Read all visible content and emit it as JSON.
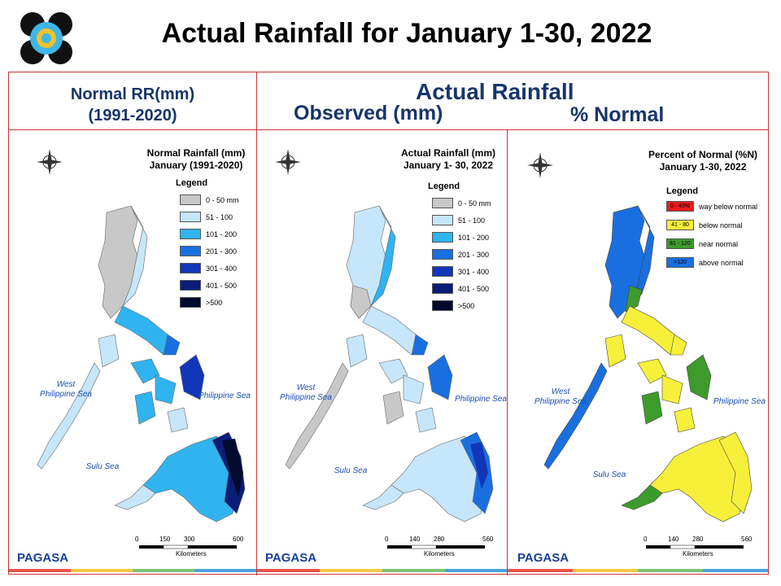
{
  "header": {
    "title": "Actual Rainfall for January 1-30, 2022"
  },
  "column_headers": {
    "normal_line1": "Normal RR(mm)",
    "normal_line2": "(1991-2020)",
    "actual": "Actual Rainfall",
    "observed": "Observed (mm)",
    "percent": "% Normal"
  },
  "maps": [
    {
      "title_line1": "Normal Rainfall (mm)",
      "title_line2": "January (1991-2020)",
      "legend_title": "Legend",
      "legend": [
        {
          "label": "0 - 50 mm",
          "color": "#c8c8c8"
        },
        {
          "label": "51 - 100",
          "color": "#c6e6fb"
        },
        {
          "label": "101 - 200",
          "color": "#2fb4f0"
        },
        {
          "label": "201 - 300",
          "color": "#1a6fe0"
        },
        {
          "label": "301 - 400",
          "color": "#1236b8"
        },
        {
          "label": "401 - 500",
          "color": "#0a1e78"
        },
        {
          "label": ">500",
          "color": "#020b2e"
        }
      ],
      "sea_west": "West\nPhilippine Sea",
      "sea_east": "Philippine Sea",
      "sea_sulu": "Sulu Sea",
      "scale": [
        "0",
        "150",
        "300",
        "600"
      ],
      "scale_unit": "Kilometers"
    },
    {
      "title_line1": "Actual Rainfall (mm)",
      "title_line2": "January 1- 30, 2022",
      "legend_title": "Legend",
      "legend": [
        {
          "label": "0 - 50 mm",
          "color": "#c8c8c8"
        },
        {
          "label": "51 - 100",
          "color": "#c6e6fb"
        },
        {
          "label": "101 - 200",
          "color": "#2fb4f0"
        },
        {
          "label": "201 - 300",
          "color": "#1a6fe0"
        },
        {
          "label": "301 - 400",
          "color": "#1236b8"
        },
        {
          "label": "401 - 500",
          "color": "#0a1e78"
        },
        {
          "label": ">500",
          "color": "#020b2e"
        }
      ],
      "sea_west": "West\nPhilippine Sea",
      "sea_east": "Philippine Sea",
      "sea_sulu": "Sulu Sea",
      "scale": [
        "0",
        "140",
        "280",
        "560"
      ],
      "scale_unit": "Kilometers"
    },
    {
      "title_line1": "Percent of Normal (%N)",
      "title_line2": "January 1-30, 2022",
      "legend_title": "Legend",
      "legend": [
        {
          "label": "0 - 40%",
          "desc": "way below normal",
          "color": "#e81c1c"
        },
        {
          "label": "41 - 80",
          "desc": "below normal",
          "color": "#f7f03a"
        },
        {
          "label": "81 - 120",
          "desc": "near normal",
          "color": "#3c9b2a"
        },
        {
          "label": ">120",
          "desc": "above normal",
          "color": "#1a6fe0"
        }
      ],
      "sea_west": "West\nPhilippine Sea",
      "sea_east": "Philippine Sea",
      "sea_sulu": "Sulu Sea",
      "scale": [
        "0",
        "140",
        "280",
        "560"
      ],
      "scale_unit": "Kilometers"
    }
  ],
  "footer": {
    "brand": "PAGASA"
  }
}
